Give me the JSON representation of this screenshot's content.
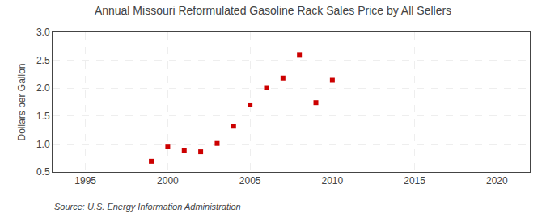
{
  "chart_data": {
    "type": "scatter",
    "title": "Annual Missouri Reformulated Gasoline Rack Sales Price by All Sellers",
    "ylabel": "Dollars per Gallon",
    "annotations": [
      "Source: U.S. Energy Information Administration"
    ],
    "x": [
      1999,
      2000,
      2001,
      2002,
      2003,
      2004,
      2005,
      2006,
      2007,
      2008,
      2009,
      2010
    ],
    "values": [
      0.69,
      0.96,
      0.89,
      0.86,
      1.01,
      1.32,
      1.7,
      2.01,
      2.18,
      2.59,
      1.74,
      2.14
    ],
    "color": "#cc0000",
    "marker": "square",
    "xlim": [
      1993,
      2022
    ],
    "ylim": [
      0.5,
      3.0
    ],
    "xticks": [
      1995,
      2000,
      2005,
      2010,
      2015,
      2020
    ],
    "yticks": [
      0.5,
      {
        "value": 1.0,
        "label": "1.0"
      },
      1.5,
      {
        "value": 2.0,
        "label": "2.0"
      },
      2.5,
      {
        "value": 3.0,
        "label": "3.0"
      }
    ],
    "grid": true
  }
}
